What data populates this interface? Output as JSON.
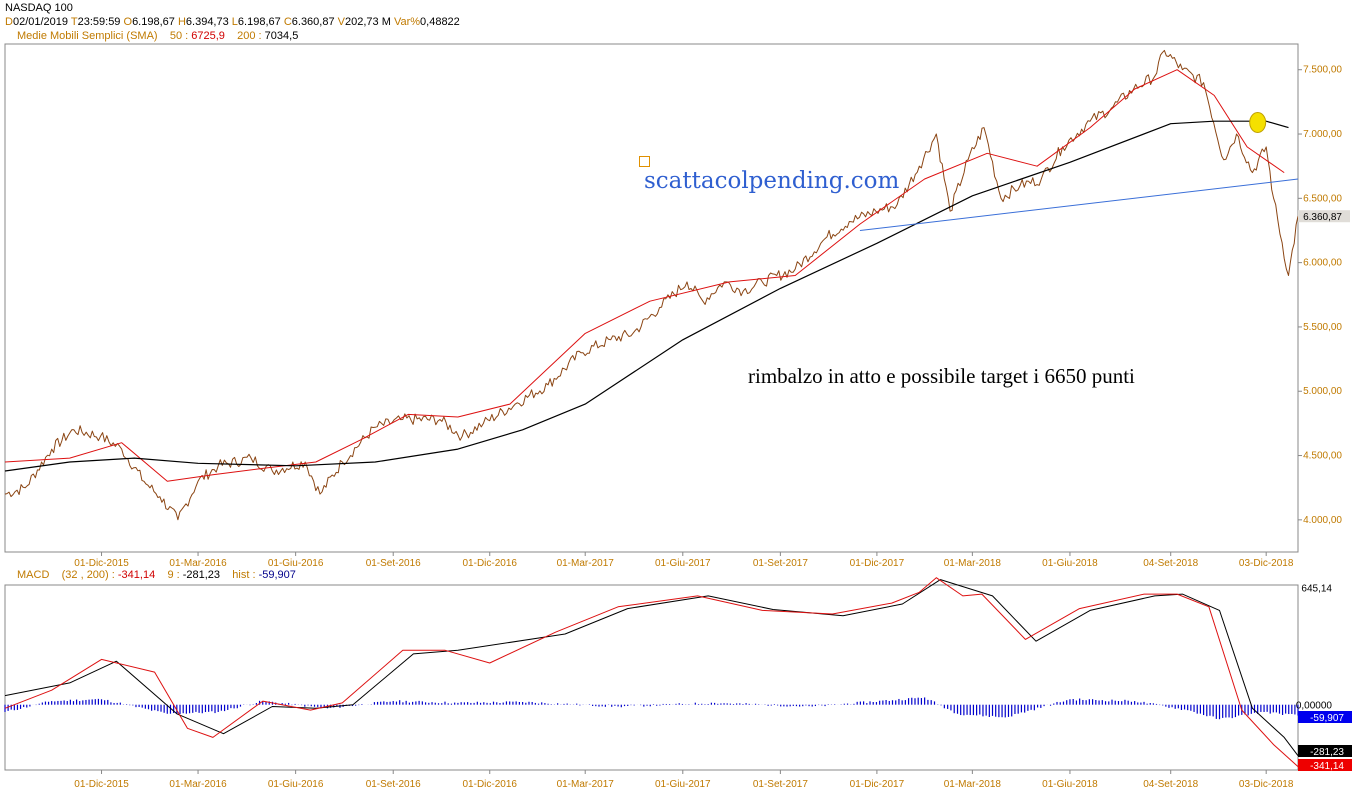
{
  "header": {
    "instrument": "NASDAQ 100",
    "d_key": "D",
    "date": "02/01/2019",
    "t_key": "T",
    "time": "23:59:59",
    "o_key": "O",
    "open": "6.198,67",
    "h_key": "H",
    "high": "6.394,73",
    "l_key": "L",
    "low": "6.198,67",
    "c_key": "C",
    "close": "6.360,87",
    "v_key": "V",
    "volume": "202,73 M",
    "var_key": "Var%",
    "var_pct": "0,48822",
    "sma_title": "Medie Mobili Semplici (SMA)",
    "sma1_key": "50 :",
    "sma1_val": "6725,9",
    "sma2_key": "200 :",
    "sma2_val": "7034,5"
  },
  "macd_header": {
    "label": "MACD",
    "params": "(32 , 200) :",
    "macd_val": "-341,14",
    "signal_key": "9 :",
    "signal_val": "-281,23",
    "hist_key": "hist :",
    "hist_val": "-59,907"
  },
  "annotations": {
    "watermark": "scattacolpending.com",
    "note": "rimbalzo in atto e possibile target i 6650 punti"
  },
  "colors": {
    "price": "#8b4513",
    "sma50": "#dd1111",
    "sma200": "#000000",
    "trendline": "#3a6fd8",
    "axis_text": "#c07a00",
    "hist": "#0000cc",
    "highlight": "#f5e000"
  },
  "chart_data": [
    {
      "type": "line",
      "title": "NASDAQ 100",
      "ylim": [
        3750,
        7700
      ],
      "yticks": [
        "4.000,00",
        "4.500,00",
        "5.000,00",
        "5.500,00",
        "6.000,00",
        "6.500,00",
        "7.000,00",
        "7.500,00"
      ],
      "ytick_values": [
        4000,
        4500,
        5000,
        5500,
        6000,
        6500,
        7000,
        7500
      ],
      "x_range": [
        "2015-09-01",
        "2019-01-02"
      ],
      "xticks": [
        "01-Dic-2015",
        "01-Mar-2016",
        "01-Giu-2016",
        "01-Set-2016",
        "01-Dic-2016",
        "01-Mar-2017",
        "01-Giu-2017",
        "01-Set-2017",
        "01-Dic-2017",
        "01-Mar-2018",
        "01-Giu-2018",
        "04-Set-2018",
        "03-Dic-2018"
      ],
      "xtick_dates": [
        "2015-12-01",
        "2016-03-01",
        "2016-06-01",
        "2016-09-01",
        "2016-12-01",
        "2017-03-01",
        "2017-06-01",
        "2017-09-01",
        "2017-12-01",
        "2018-03-01",
        "2018-06-01",
        "2018-09-04",
        "2018-12-03"
      ],
      "last_value_label": "6.360,87",
      "last_value": 6360.87,
      "series": [
        {
          "name": "NASDAQ 100",
          "x": [
            "2015-09-01",
            "2015-09-20",
            "2015-10-15",
            "2015-11-05",
            "2015-11-30",
            "2015-12-20",
            "2016-01-10",
            "2016-01-25",
            "2016-02-11",
            "2016-03-01",
            "2016-03-20",
            "2016-04-20",
            "2016-05-10",
            "2016-06-10",
            "2016-06-24",
            "2016-07-15",
            "2016-08-15",
            "2016-09-10",
            "2016-10-15",
            "2016-11-05",
            "2016-11-25",
            "2016-12-25",
            "2017-01-25",
            "2017-02-25",
            "2017-03-25",
            "2017-04-15",
            "2017-05-10",
            "2017-06-05",
            "2017-06-20",
            "2017-07-10",
            "2017-07-28",
            "2017-08-15",
            "2017-09-15",
            "2017-10-15",
            "2017-11-05",
            "2017-11-30",
            "2017-12-20",
            "2018-01-10",
            "2018-01-26",
            "2018-02-08",
            "2018-02-25",
            "2018-03-12",
            "2018-03-28",
            "2018-04-15",
            "2018-05-05",
            "2018-05-25",
            "2018-06-20",
            "2018-07-10",
            "2018-07-31",
            "2018-08-20",
            "2018-08-29",
            "2018-09-15",
            "2018-10-05",
            "2018-10-24",
            "2018-11-05",
            "2018-11-20",
            "2018-12-03",
            "2018-12-10",
            "2018-12-24",
            "2019-01-02"
          ],
          "values": [
            4200,
            4250,
            4550,
            4700,
            4650,
            4550,
            4300,
            4180,
            4000,
            4300,
            4420,
            4480,
            4380,
            4450,
            4200,
            4450,
            4720,
            4780,
            4780,
            4650,
            4750,
            4900,
            5050,
            5300,
            5400,
            5450,
            5650,
            5850,
            5700,
            5850,
            5780,
            5850,
            5950,
            6200,
            6320,
            6400,
            6450,
            6750,
            7000,
            6400,
            6800,
            7050,
            6500,
            6600,
            6650,
            6900,
            7100,
            7200,
            7350,
            7450,
            7650,
            7500,
            7400,
            6800,
            7000,
            6700,
            6900,
            6500,
            5900,
            6360.87
          ]
        },
        {
          "name": "SMA 50",
          "x": [
            "2015-09-01",
            "2015-11-01",
            "2015-12-20",
            "2016-02-01",
            "2016-03-15",
            "2016-05-01",
            "2016-06-20",
            "2016-08-01",
            "2016-09-15",
            "2016-11-01",
            "2016-12-20",
            "2017-03-01",
            "2017-05-01",
            "2017-07-15",
            "2017-09-15",
            "2017-11-15",
            "2018-01-15",
            "2018-03-15",
            "2018-05-01",
            "2018-06-20",
            "2018-08-01",
            "2018-09-10",
            "2018-10-15",
            "2018-11-15",
            "2018-12-20"
          ],
          "values": [
            4450,
            4480,
            4600,
            4300,
            4350,
            4400,
            4450,
            4620,
            4820,
            4800,
            4900,
            5450,
            5700,
            5850,
            5900,
            6300,
            6650,
            6850,
            6750,
            7050,
            7350,
            7500,
            7300,
            6900,
            6700
          ]
        },
        {
          "name": "SMA 200",
          "x": [
            "2015-09-01",
            "2015-11-01",
            "2016-01-01",
            "2016-03-01",
            "2016-06-01",
            "2016-08-15",
            "2016-11-01",
            "2017-01-01",
            "2017-03-01",
            "2017-06-01",
            "2017-09-01",
            "2017-12-01",
            "2018-03-01",
            "2018-06-01",
            "2018-09-04",
            "2018-10-15",
            "2018-12-03",
            "2018-12-24"
          ],
          "values": [
            4380,
            4450,
            4480,
            4440,
            4420,
            4450,
            4550,
            4700,
            4900,
            5400,
            5800,
            6150,
            6520,
            6780,
            7080,
            7100,
            7100,
            7050
          ]
        },
        {
          "name": "trendline",
          "x": [
            "2017-11-15",
            "2019-01-02"
          ],
          "values": [
            6250,
            6650
          ]
        }
      ]
    },
    {
      "type": "line",
      "title": "MACD",
      "ylim": [
        -360,
        660
      ],
      "yticks": [
        "645,14",
        "0,00000"
      ],
      "ytick_values": [
        645.14,
        0
      ],
      "value_labels": [
        "-59,907",
        "-281,23",
        "-341,14"
      ],
      "value_label_values": [
        -59.907,
        -281.23,
        -341.14
      ],
      "series": [
        {
          "name": "MACD",
          "x": [
            "2015-09-01",
            "2015-10-15",
            "2015-12-01",
            "2016-01-20",
            "2016-02-20",
            "2016-03-15",
            "2016-05-01",
            "2016-06-15",
            "2016-07-15",
            "2016-09-10",
            "2016-10-20",
            "2016-12-01",
            "2017-02-01",
            "2017-04-01",
            "2017-06-15",
            "2017-08-15",
            "2017-10-20",
            "2017-12-15",
            "2018-01-10",
            "2018-01-26",
            "2018-02-20",
            "2018-03-10",
            "2018-04-20",
            "2018-06-10",
            "2018-08-10",
            "2018-09-10",
            "2018-10-10",
            "2018-11-10",
            "2018-12-10",
            "2019-01-02"
          ],
          "values": [
            -20,
            80,
            250,
            180,
            -130,
            -180,
            20,
            -30,
            10,
            300,
            300,
            230,
            400,
            540,
            600,
            520,
            500,
            560,
            620,
            700,
            600,
            610,
            360,
            530,
            610,
            610,
            540,
            -30,
            -220,
            -341.14
          ]
        },
        {
          "name": "Signal",
          "x": [
            "2015-09-01",
            "2015-11-01",
            "2015-12-15",
            "2016-02-10",
            "2016-03-25",
            "2016-05-10",
            "2016-06-20",
            "2016-07-25",
            "2016-09-20",
            "2016-11-01",
            "2017-02-10",
            "2017-04-10",
            "2017-06-25",
            "2017-08-25",
            "2017-10-30",
            "2017-12-25",
            "2018-01-30",
            "2018-03-20",
            "2018-04-30",
            "2018-06-20",
            "2018-08-20",
            "2018-09-15",
            "2018-10-20",
            "2018-11-20",
            "2018-12-20",
            "2019-01-02"
          ],
          "values": [
            50,
            120,
            240,
            -50,
            -160,
            -10,
            -20,
            0,
            280,
            300,
            390,
            530,
            600,
            525,
            490,
            555,
            690,
            600,
            350,
            520,
            600,
            610,
            520,
            -20,
            -180,
            -281.23
          ]
        },
        {
          "name": "hist",
          "x": [
            "2015-09-01",
            "2015-10-15",
            "2015-12-01",
            "2016-02-01",
            "2016-03-20",
            "2016-05-01",
            "2016-07-01",
            "2016-09-01",
            "2016-11-01",
            "2017-01-01",
            "2017-04-01",
            "2017-07-01",
            "2017-10-01",
            "2018-01-15",
            "2018-02-15",
            "2018-04-01",
            "2018-06-01",
            "2018-08-01",
            "2018-09-20",
            "2018-10-20",
            "2018-12-01",
            "2019-01-02"
          ],
          "values": [
            -40,
            20,
            30,
            -50,
            -40,
            20,
            -20,
            20,
            10,
            15,
            -10,
            10,
            -10,
            40,
            -50,
            -70,
            30,
            20,
            -30,
            -80,
            -40,
            -59.907
          ]
        }
      ]
    }
  ]
}
